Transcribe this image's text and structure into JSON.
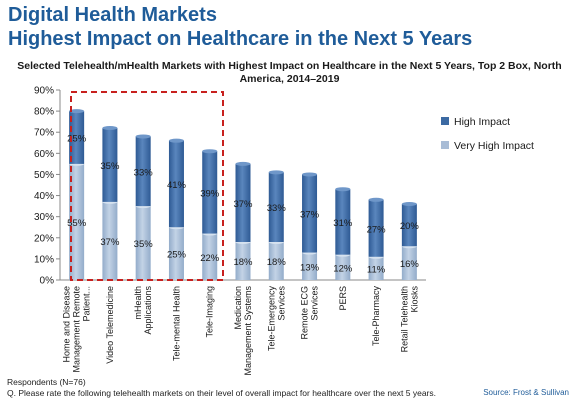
{
  "slide": {
    "title_line1": "Digital Health Markets",
    "title_line2": "Highest Impact on Healthcare in the Next 5 Years",
    "respondents": "Respondents (N=76)",
    "question": "Q. Please rate the following telehealth markets on their level of overall impact for healthcare over the next 5 years.",
    "source": "Source: Frost & Sullivan"
  },
  "chart_data": {
    "type": "bar",
    "stacked": true,
    "title": "Selected Telehealth/mHealth Markets with Highest Impact on Healthcare in the Next 5 Years, Top 2 Box, North America, 2014–2019",
    "categories": [
      "Home and Disease Management Remote Patient...",
      "Video Telemedicine",
      "mHealth Applications",
      "Tele-mental Health",
      "Tele-Imaging",
      "Medication Management Systems",
      "Tele-Emergency Services",
      "Remote ECG Services",
      "PERS",
      "Tele-Pharmacy",
      "Retail Telehealth Kiosks"
    ],
    "series": [
      {
        "name": "Very High Impact",
        "color": "#a8bcd6",
        "values": [
          55,
          37,
          35,
          25,
          22,
          18,
          18,
          13,
          12,
          11,
          16
        ]
      },
      {
        "name": "High Impact",
        "color": "#3c6aa3",
        "values": [
          25,
          35,
          33,
          41,
          39,
          37,
          33,
          37,
          31,
          27,
          20
        ]
      }
    ],
    "ylim": [
      0,
      90
    ],
    "yticks": [
      "0%",
      "10%",
      "20%",
      "30%",
      "40%",
      "50%",
      "60%",
      "70%",
      "80%",
      "90%"
    ],
    "legend_position": "right",
    "highlight": "dashed red box around the first four bars"
  }
}
